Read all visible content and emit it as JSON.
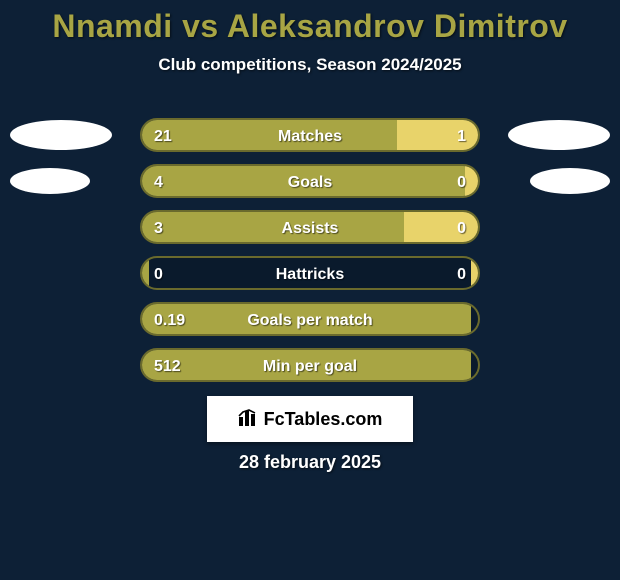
{
  "title": {
    "text": "Nnamdi vs Aleksandrov Dimitrov",
    "color": "#a8a544",
    "fontsize": 32
  },
  "subtitle": {
    "text": "Club competitions, Season 2024/2025",
    "color": "#ffffff",
    "fontsize": 17,
    "margin_top": 10
  },
  "chart": {
    "track_width": 340,
    "track_height": 34,
    "track_bg": "#0a1a2c",
    "track_border": "#6a6a2d",
    "left_fill": "#a8a544",
    "right_fill": "#e8d36a",
    "label_color": "#ffffff",
    "label_fontsize": 16,
    "oval_bg": "#ffffff",
    "oval_width_large": 102,
    "oval_height_large": 30,
    "oval_width_small": 80,
    "oval_height_small": 26,
    "rows": [
      {
        "label": "Matches",
        "left_val": "21",
        "right_val": "1",
        "left_pct": 76,
        "right_pct": 24,
        "show_ovals": true,
        "oval": "large"
      },
      {
        "label": "Goals",
        "left_val": "4",
        "right_val": "0",
        "left_pct": 96,
        "right_pct": 4,
        "show_ovals": true,
        "oval": "small"
      },
      {
        "label": "Assists",
        "left_val": "3",
        "right_val": "0",
        "left_pct": 78,
        "right_pct": 22,
        "show_ovals": false
      },
      {
        "label": "Hattricks",
        "left_val": "0",
        "right_val": "0",
        "left_pct": 2,
        "right_pct": 2,
        "show_ovals": false
      },
      {
        "label": "Goals per match",
        "left_val": "0.19",
        "right_val": "",
        "left_pct": 98,
        "right_pct": 0,
        "show_ovals": false
      },
      {
        "label": "Min per goal",
        "left_val": "512",
        "right_val": "",
        "left_pct": 98,
        "right_pct": 0,
        "show_ovals": false
      }
    ]
  },
  "logo": {
    "text": "FcTables.com",
    "icon_name": "bar-chart-icon"
  },
  "date": {
    "text": "28 february 2025",
    "color": "#ffffff",
    "fontsize": 18
  },
  "background_color": "#0d2036"
}
